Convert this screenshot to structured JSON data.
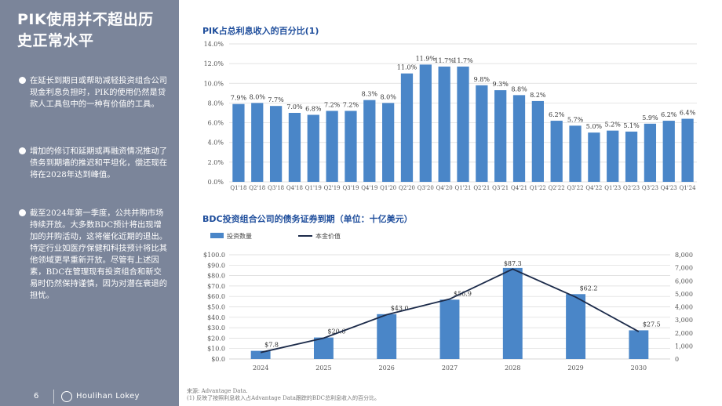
{
  "sidebar": {
    "title": "PIK使用并不超出历史正常水平",
    "bullets": [
      "在延长到期日或帮助减轻投资组合公司现金利息负担时，PIK的使用仍然是贷款人工具包中的一种有价值的工具。",
      "增加的修订和延期或再融资情况推动了债务到期墙的推迟和平坦化，偿还现在将在2028年达到峰值。",
      "截至2024年第一季度，公共并购市场持续开放。大多数BDC预计将出现增加的并购活动，这将催化近期的退出。特定行业如医疗保健和科技预计将比其他领域更早重新开放。尽管有上述因素，BDC在管理现有投资组合和新交易时仍然保持谨慎，因为对潜在衰退的担忧。"
    ],
    "page_number": "6",
    "logo_text": "Houlihan Lokey"
  },
  "colors": {
    "sidebar": "#7b859a",
    "bar": "#4a86c8",
    "line": "#1c2b4a",
    "title": "#1f4e9c"
  },
  "chart_data": [
    {
      "type": "bar",
      "title": "PIK占总利息收入的百分比(1)",
      "categories": [
        "Q1'18",
        "Q2'18",
        "Q3'18",
        "Q4'18",
        "Q1'19",
        "Q2'19",
        "Q3'19",
        "Q4'19",
        "Q1'20",
        "Q2'20",
        "Q3'20",
        "Q4'20",
        "Q1'21",
        "Q2'21",
        "Q3'21",
        "Q4'21",
        "Q1'22",
        "Q2'22",
        "Q3'22",
        "Q4'22",
        "Q1'23",
        "Q2'23",
        "Q3'23",
        "Q4'23",
        "Q1'24"
      ],
      "values": [
        7.9,
        8.0,
        7.7,
        7.0,
        6.8,
        7.2,
        7.2,
        8.3,
        8.0,
        11.0,
        11.9,
        11.7,
        11.7,
        9.8,
        9.3,
        8.8,
        8.2,
        6.2,
        5.7,
        5.0,
        5.2,
        5.1,
        5.9,
        6.2,
        6.4
      ],
      "labels": [
        "7.9%",
        "8.0%",
        "7.7%",
        "7.0%",
        "6.8%",
        "7.2%",
        "7.2%",
        "8.3%",
        "8.0%",
        "11.0%",
        "11.9%",
        "11.7%",
        "11.7%",
        "9.8%",
        "9.3%",
        "8.8%",
        "8.2%",
        "6.2%",
        "5.7%",
        "5.0%",
        "5.2%",
        "5.1%",
        "5.9%",
        "6.2%",
        "6.4%"
      ],
      "ylim": [
        0,
        14
      ],
      "yticks": [
        "0.0%",
        "2.0%",
        "4.0%",
        "6.0%",
        "8.0%",
        "10.0%",
        "12.0%",
        "14.0%"
      ],
      "grid": true
    },
    {
      "type": "bar",
      "title": "BDC投资组合公司的债务证券到期（单位：十亿美元）",
      "legend": [
        "投资数量",
        "本金价值"
      ],
      "categories": [
        "2024",
        "2025",
        "2026",
        "2027",
        "2028",
        "2029",
        "2030"
      ],
      "values": [
        7.8,
        20.6,
        43.0,
        56.9,
        87.3,
        62.2,
        27.5
      ],
      "labels": [
        "$7.8",
        "$20.6",
        "$43.0",
        "$56.9",
        "$87.3",
        "$62.2",
        "$27.5"
      ],
      "ylim": [
        0,
        100
      ],
      "yticks": [
        "$0.0",
        "$10.0",
        "$20.0",
        "$30.0",
        "$40.0",
        "$50.0",
        "$60.0",
        "$70.0",
        "$80.0",
        "$90.0",
        "$100.0"
      ],
      "line": {
        "values": [
          500,
          1600,
          3400,
          4600,
          6900,
          4750,
          2100
        ],
        "ylim": [
          0,
          8000
        ]
      },
      "y2ticks": [
        "0",
        "1,000",
        "2,000",
        "3,000",
        "4,000",
        "5,000",
        "6,000",
        "7,000",
        "8,000"
      ]
    }
  ],
  "source_note": {
    "line1": "来源: Advantage Data.",
    "line2": "(1) 反映了按照利息收入占Advantage Data跟踪的BDC总利息收入的百分比。"
  }
}
